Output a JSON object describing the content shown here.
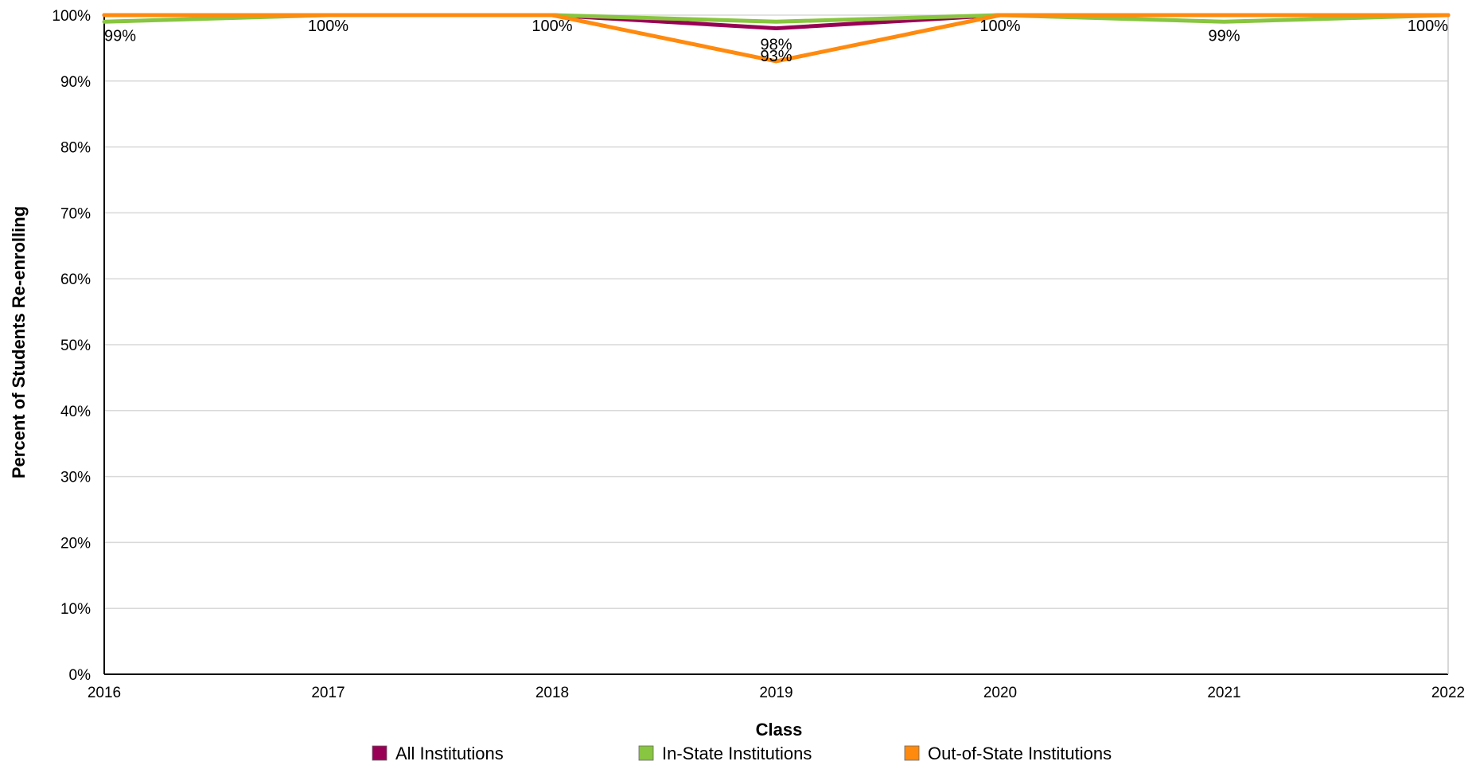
{
  "chart_data": {
    "type": "line",
    "title": "",
    "xlabel": "Class",
    "ylabel": "Percent of Students Re-enrolling",
    "x": [
      "2016",
      "2017",
      "2018",
      "2019",
      "2020",
      "2021",
      "2022"
    ],
    "ylim": [
      0,
      100
    ],
    "yticks": [
      "0%",
      "10%",
      "20%",
      "30%",
      "40%",
      "50%",
      "60%",
      "70%",
      "80%",
      "90%",
      "100%"
    ],
    "grid": true,
    "legend_position": "bottom",
    "series": [
      {
        "name": "All Institutions",
        "color": "#990055",
        "values": [
          100,
          100,
          100,
          98,
          100,
          100,
          100
        ]
      },
      {
        "name": "In-State Institutions",
        "color": "#88c540",
        "values": [
          99,
          100,
          100,
          99,
          100,
          99,
          100
        ]
      },
      {
        "name": "Out-of-State Institutions",
        "color": "#ff8a0e",
        "values": [
          100,
          100,
          100,
          93,
          100,
          100,
          100
        ]
      }
    ],
    "data_labels": [
      {
        "x": "2016",
        "text": "99%"
      },
      {
        "x": "2017",
        "text": "100%"
      },
      {
        "x": "2018",
        "text": "100%"
      },
      {
        "x": "2019",
        "text": "98%"
      },
      {
        "x": "2019",
        "text": "93%"
      },
      {
        "x": "2020",
        "text": "100%"
      },
      {
        "x": "2021",
        "text": "99%"
      },
      {
        "x": "2022",
        "text": "100%"
      }
    ]
  }
}
